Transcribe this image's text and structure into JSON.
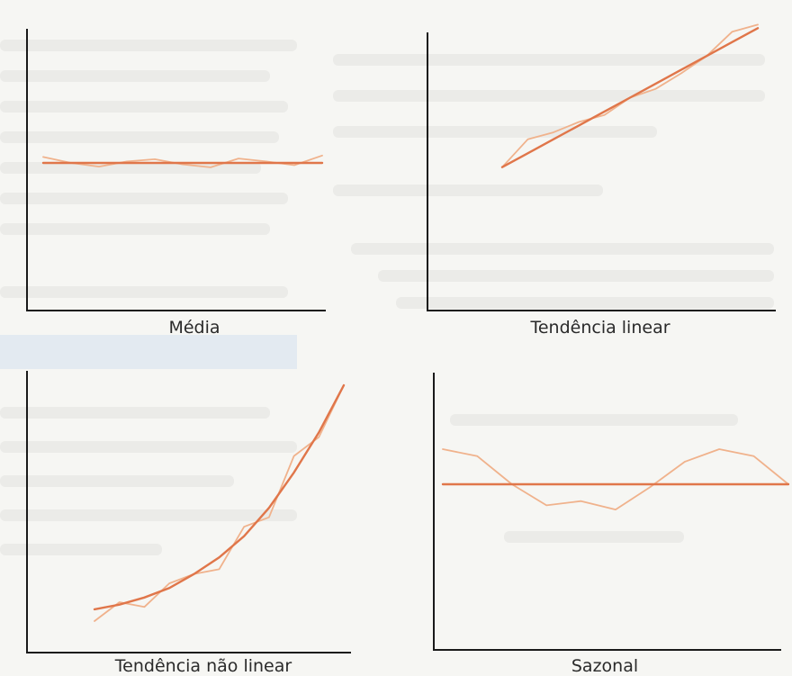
{
  "colors": {
    "trend": "#e0764a",
    "observed": "#f0b28c",
    "axis": "#1a1a1a"
  },
  "chart_data": [
    {
      "type": "line",
      "label": "Média",
      "series": [
        {
          "values": [
            0.5,
            0.5,
            0.5,
            0.5,
            0.5,
            0.5,
            0.5,
            0.5,
            0.5,
            0.5,
            0.5
          ]
        },
        {
          "values": [
            0.58,
            0.5,
            0.45,
            0.52,
            0.55,
            0.48,
            0.44,
            0.56,
            0.52,
            0.47,
            0.6
          ]
        }
      ]
    },
    {
      "type": "line",
      "label": "Tendência linear",
      "series": [
        {
          "values": [
            0.1,
            0.18,
            0.26,
            0.34,
            0.42,
            0.5,
            0.58,
            0.66,
            0.74,
            0.82,
            0.9
          ]
        },
        {
          "values": [
            0.1,
            0.26,
            0.3,
            0.36,
            0.4,
            0.5,
            0.55,
            0.64,
            0.74,
            0.88,
            0.92
          ]
        }
      ]
    },
    {
      "type": "line",
      "label": "Tendência não linear",
      "series": [
        {
          "values": [
            0.05,
            0.07,
            0.1,
            0.14,
            0.2,
            0.27,
            0.36,
            0.48,
            0.63,
            0.8,
            1.0
          ]
        },
        {
          "values": [
            0.0,
            0.08,
            0.06,
            0.16,
            0.2,
            0.22,
            0.4,
            0.44,
            0.7,
            0.78,
            1.0
          ]
        }
      ]
    },
    {
      "type": "line",
      "label": "Sazonal",
      "series": [
        {
          "values": [
            0.5,
            0.5,
            0.5,
            0.5,
            0.5,
            0.5,
            0.5,
            0.5,
            0.5,
            0.5,
            0.5
          ]
        },
        {
          "values": [
            0.75,
            0.7,
            0.5,
            0.35,
            0.38,
            0.32,
            0.48,
            0.66,
            0.75,
            0.7,
            0.5
          ]
        }
      ]
    }
  ]
}
